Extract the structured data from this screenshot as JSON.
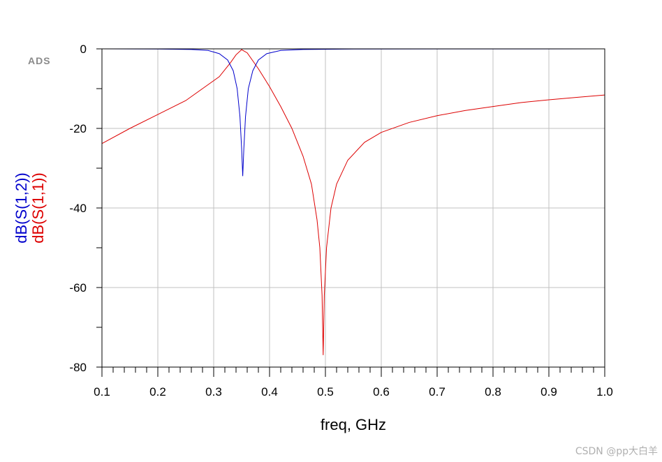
{
  "logo": "ADS",
  "watermark": "CSDN @pp大白羊",
  "chart_data": {
    "type": "line",
    "xlabel": "freq, GHz",
    "xlim": [
      0.1,
      1.0
    ],
    "ylim": [
      -80,
      0
    ],
    "x_ticks": [
      "0.1",
      "0.2",
      "0.3",
      "0.4",
      "0.5",
      "0.6",
      "0.7",
      "0.8",
      "0.9",
      "1.0"
    ],
    "y_ticks": [
      "0",
      "-20",
      "-40",
      "-60",
      "-80"
    ],
    "grid": true,
    "series": [
      {
        "name": "dB(S(1,2))",
        "color": "#0000cc",
        "points": [
          [
            0.1,
            0.0
          ],
          [
            0.2,
            -0.05
          ],
          [
            0.26,
            -0.15
          ],
          [
            0.29,
            -0.4
          ],
          [
            0.31,
            -1.2
          ],
          [
            0.325,
            -2.8
          ],
          [
            0.335,
            -5.5
          ],
          [
            0.342,
            -10
          ],
          [
            0.347,
            -17
          ],
          [
            0.35,
            -25
          ],
          [
            0.352,
            -32
          ],
          [
            0.354,
            -25
          ],
          [
            0.357,
            -17
          ],
          [
            0.362,
            -10
          ],
          [
            0.37,
            -5.5
          ],
          [
            0.38,
            -2.8
          ],
          [
            0.395,
            -1.2
          ],
          [
            0.42,
            -0.4
          ],
          [
            0.46,
            -0.15
          ],
          [
            0.55,
            -0.05
          ],
          [
            1.0,
            0.0
          ]
        ]
      },
      {
        "name": "dB(S(1,1))",
        "color": "#dd0000",
        "points": [
          [
            0.1,
            -23.8
          ],
          [
            0.15,
            -20
          ],
          [
            0.2,
            -16.5
          ],
          [
            0.25,
            -13
          ],
          [
            0.28,
            -10
          ],
          [
            0.31,
            -7
          ],
          [
            0.33,
            -3.5
          ],
          [
            0.34,
            -1.5
          ],
          [
            0.35,
            -0.2
          ],
          [
            0.36,
            -1
          ],
          [
            0.38,
            -5
          ],
          [
            0.4,
            -9.5
          ],
          [
            0.42,
            -14.5
          ],
          [
            0.44,
            -20
          ],
          [
            0.46,
            -27
          ],
          [
            0.475,
            -34
          ],
          [
            0.485,
            -43
          ],
          [
            0.49,
            -50
          ],
          [
            0.494,
            -62
          ],
          [
            0.496,
            -77
          ],
          [
            0.498,
            -62
          ],
          [
            0.502,
            -50
          ],
          [
            0.51,
            -40
          ],
          [
            0.52,
            -34
          ],
          [
            0.54,
            -28
          ],
          [
            0.57,
            -23.5
          ],
          [
            0.6,
            -21
          ],
          [
            0.65,
            -18.5
          ],
          [
            0.7,
            -16.8
          ],
          [
            0.75,
            -15.5
          ],
          [
            0.8,
            -14.5
          ],
          [
            0.85,
            -13.5
          ],
          [
            0.9,
            -12.8
          ],
          [
            0.95,
            -12.2
          ],
          [
            1.0,
            -11.6
          ]
        ]
      }
    ]
  }
}
